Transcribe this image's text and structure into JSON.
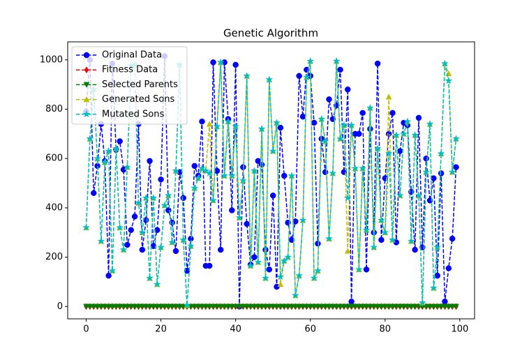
{
  "chart_data": {
    "type": "line",
    "title": "Genetic Algorithm",
    "x": [
      0,
      1,
      2,
      3,
      4,
      5,
      6,
      7,
      8,
      9,
      10,
      11,
      12,
      13,
      14,
      15,
      16,
      17,
      18,
      19,
      20,
      21,
      22,
      23,
      24,
      25,
      26,
      27,
      28,
      29,
      30,
      31,
      32,
      33,
      34,
      35,
      36,
      37,
      38,
      39,
      40,
      41,
      42,
      43,
      44,
      45,
      46,
      47,
      48,
      49,
      50,
      51,
      52,
      53,
      54,
      55,
      56,
      57,
      58,
      59,
      60,
      61,
      62,
      63,
      64,
      65,
      66,
      67,
      68,
      69,
      70,
      71,
      72,
      73,
      74,
      75,
      76,
      77,
      78,
      79,
      80,
      81,
      82,
      83,
      84,
      85,
      86,
      87,
      88,
      89,
      90,
      91,
      92,
      93,
      94,
      95,
      96,
      97,
      98,
      99
    ],
    "xlim": [
      -4.95,
      103.95
    ],
    "xticks": [
      0,
      20,
      40,
      60,
      80,
      100
    ],
    "ylim": [
      -50,
      1073
    ],
    "yticks": [
      0,
      200,
      400,
      600,
      800,
      1000
    ],
    "legend": "upper left",
    "series": [
      {
        "name": "Original Data",
        "color": "#0000ff",
        "marker": "o",
        "values": [
          790,
          1000,
          460,
          570,
          740,
          590,
          125,
          985,
          635,
          670,
          555,
          250,
          310,
          365,
          740,
          230,
          350,
          590,
          245,
          310,
          515,
          1015,
          390,
          340,
          225,
          545,
          440,
          145,
          275,
          570,
          530,
          750,
          165,
          165,
          990,
          550,
          230,
          990,
          760,
          390,
          980,
          0,
          565,
          335,
          170,
          200,
          590,
          575,
          230,
          150,
          450,
          80,
          725,
          530,
          340,
          270,
          345,
          935,
          770,
          960,
          935,
          745,
          255,
          680,
          545,
          840,
          760,
          815,
          960,
          545,
          880,
          20,
          700,
          700,
          785,
          150,
          720,
          300,
          985,
          270,
          520,
          700,
          785,
          260,
          630,
          745,
          735,
          465,
          230,
          765,
          240,
          600,
          430,
          520,
          125,
          540,
          20,
          155,
          275,
          565
        ]
      },
      {
        "name": "Fitness Data",
        "color": "#ff0000",
        "marker": "d",
        "values": [
          0,
          0,
          0,
          0,
          0,
          0,
          0,
          0,
          0,
          0,
          0,
          0,
          0,
          0,
          0,
          0,
          0,
          0,
          0,
          0,
          0,
          0,
          0,
          0,
          0,
          0,
          0,
          0,
          0,
          0,
          0,
          0,
          0,
          0,
          0,
          0,
          0,
          0,
          0,
          0,
          0,
          0,
          0,
          0,
          0,
          0,
          0,
          0,
          0,
          0,
          0,
          0,
          0,
          0,
          0,
          0,
          0,
          0,
          0,
          0,
          0,
          0,
          0,
          0,
          0,
          0,
          0,
          0,
          0,
          0,
          0,
          0,
          0,
          0,
          0,
          0,
          0,
          0,
          0,
          0,
          0,
          0,
          0,
          0,
          0,
          0,
          0,
          0,
          0,
          0,
          0,
          0,
          0,
          0,
          0,
          0,
          0,
          0,
          0,
          0
        ]
      },
      {
        "name": "Selected Parents",
        "color": "#008000",
        "marker": "v",
        "values": [
          0,
          0,
          0,
          0,
          0,
          0,
          0,
          0,
          0,
          0,
          0,
          0,
          0,
          0,
          0,
          0,
          0,
          0,
          0,
          0,
          0,
          0,
          0,
          0,
          0,
          0,
          0,
          0,
          0,
          0,
          0,
          0,
          0,
          0,
          0,
          0,
          0,
          0,
          0,
          0,
          0,
          0,
          0,
          0,
          0,
          0,
          0,
          0,
          0,
          0,
          0,
          0,
          0,
          0,
          0,
          0,
          0,
          0,
          0,
          0,
          0,
          0,
          0,
          0,
          0,
          0,
          0,
          0,
          0,
          0,
          0,
          0,
          0,
          0,
          0,
          0,
          0,
          0,
          0,
          0,
          0,
          0,
          0,
          0,
          0,
          0,
          0,
          0,
          0,
          0,
          0,
          0,
          0,
          0,
          0,
          0,
          0,
          0,
          0,
          0
        ]
      },
      {
        "name": "Generated Sons",
        "color": "#bfbf00",
        "marker": "^",
        "values": [
          320,
          680,
          880,
          600,
          265,
          585,
          630,
          145,
          640,
          320,
          230,
          565,
          975,
          980,
          420,
          300,
          440,
          115,
          440,
          90,
          240,
          410,
          450,
          260,
          550,
          980,
          270,
          5,
          245,
          480,
          520,
          560,
          550,
          740,
          430,
          730,
          990,
          530,
          750,
          530,
          730,
          360,
          510,
          935,
          165,
          550,
          180,
          720,
          115,
          920,
          630,
          745,
          90,
          185,
          200,
          530,
          45,
          125,
          350,
          930,
          995,
          115,
          145,
          760,
          670,
          275,
          540,
          995,
          680,
          735,
          225,
          735,
          560,
          150,
          560,
          310,
          805,
          240,
          640,
          350,
          300,
          850,
          270,
          695,
          450,
          700,
          750,
          265,
          695,
          450,
          15,
          545,
          740,
          75,
          240,
          620,
          985,
          945,
          545,
          680
        ]
      },
      {
        "name": "Mutated Sons",
        "color": "#00bfbf",
        "marker": "*",
        "values": [
          320,
          680,
          880,
          600,
          265,
          585,
          630,
          145,
          640,
          320,
          230,
          565,
          975,
          980,
          420,
          300,
          440,
          115,
          440,
          90,
          240,
          410,
          450,
          260,
          550,
          980,
          270,
          5,
          245,
          480,
          520,
          560,
          550,
          540,
          430,
          730,
          990,
          530,
          750,
          530,
          730,
          360,
          510,
          935,
          165,
          550,
          180,
          720,
          115,
          920,
          630,
          745,
          120,
          185,
          200,
          530,
          45,
          125,
          350,
          930,
          995,
          115,
          145,
          760,
          670,
          275,
          540,
          995,
          680,
          735,
          440,
          735,
          560,
          150,
          560,
          310,
          805,
          240,
          640,
          350,
          300,
          620,
          270,
          695,
          450,
          700,
          750,
          265,
          695,
          450,
          15,
          545,
          740,
          75,
          240,
          620,
          985,
          915,
          545,
          680
        ]
      }
    ]
  }
}
